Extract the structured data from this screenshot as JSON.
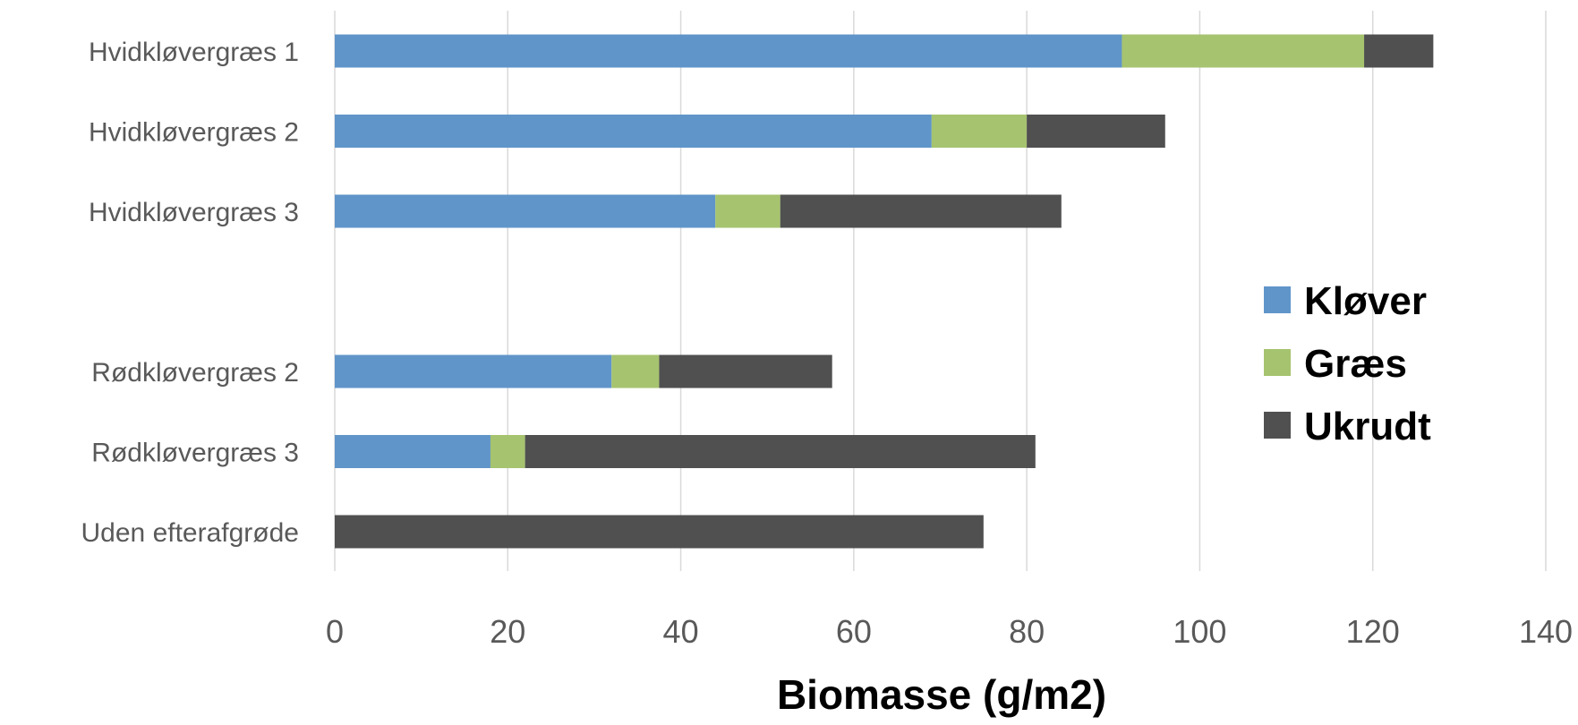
{
  "chart_data": {
    "type": "bar",
    "orientation": "horizontal",
    "stacked": true,
    "categories": [
      "Hvidkløvergræs 1",
      "Hvidkløvergræs 2",
      "Hvidkløvergræs 3",
      "",
      "Rødkløvergræs 2",
      "Rødkløvergræs 3",
      "Uden efterafgrøde"
    ],
    "series": [
      {
        "name": "Kløver",
        "color": "#6095C9",
        "values": [
          91,
          69,
          44,
          null,
          32,
          18,
          0
        ]
      },
      {
        "name": "Græs",
        "color": "#A6C36F",
        "values": [
          28,
          11,
          7.5,
          null,
          5.5,
          4,
          0
        ]
      },
      {
        "name": "Ukrudt",
        "color": "#505050",
        "values": [
          8,
          16,
          32.5,
          null,
          20,
          59,
          75
        ]
      }
    ],
    "xlabel": "Biomasse (g/m2)",
    "xlim": [
      0,
      140
    ],
    "xticks": [
      0,
      20,
      40,
      60,
      80,
      100,
      120,
      140
    ],
    "grid": true,
    "legend_position": "right"
  }
}
